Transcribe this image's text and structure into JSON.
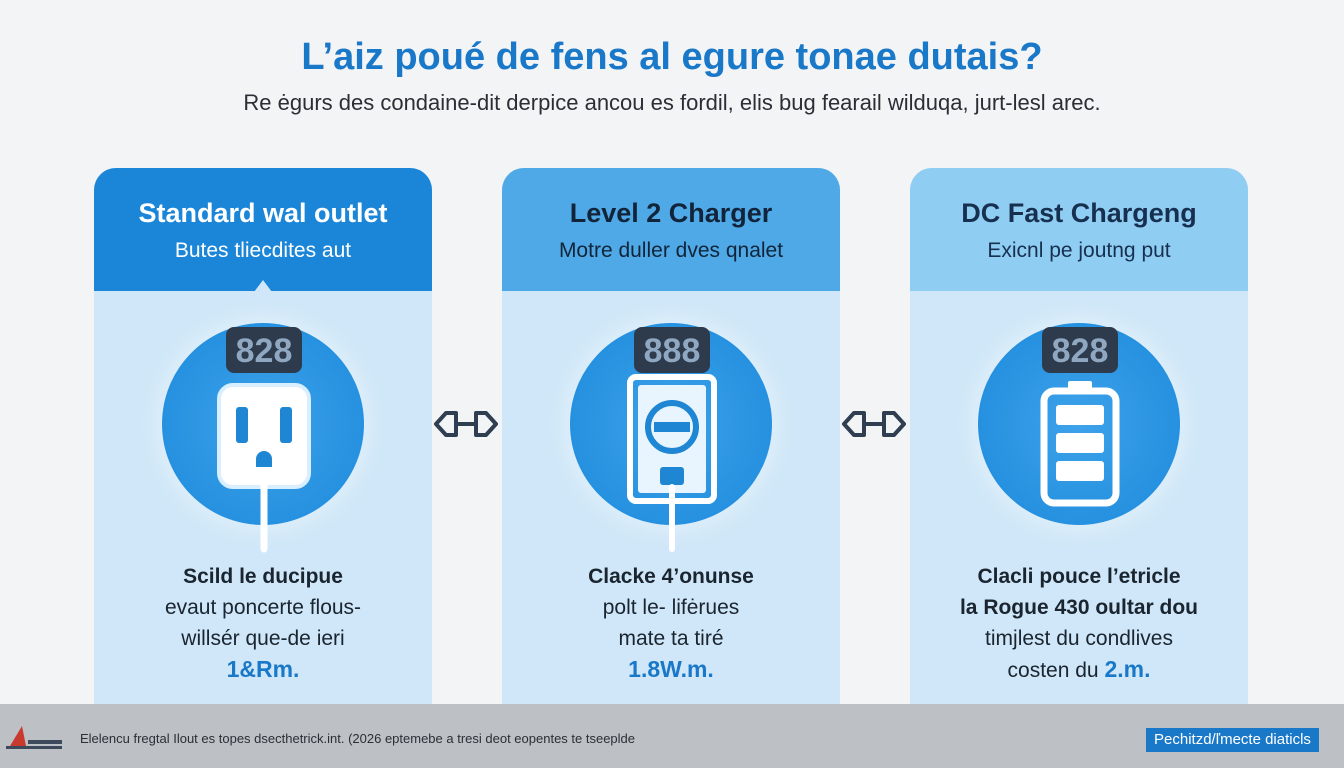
{
  "header": {
    "title": "L’aiz poué de fens al egure tonae dutais?",
    "subtitle": "Re ėgurs des condaine-dit derpice ancou es fordil, elis bug fearail wilduqa, jurt-lesl arec."
  },
  "cards": [
    {
      "title": "Standard wal outlet",
      "subtitle": "Butes tliecdites aut",
      "badge": "828",
      "icon": "wall-outlet-icon",
      "line1": "Scild le ducipue",
      "line2": "evaut poncerte flous-",
      "line3": "willsér que-de ieri",
      "accent": "1&Rm."
    },
    {
      "title": "Level 2 Charger",
      "subtitle": "Motre duller dves qnalet",
      "badge": "888",
      "icon": "charger-station-icon",
      "line1": "Clacke 4’onunse",
      "line2": "polt le- lifėrues",
      "line3": "mate ta tiré",
      "accent": "1.8W.m."
    },
    {
      "title": "DC Fast Chargeng",
      "subtitle": "Exicnl pe joutng put",
      "badge": "828",
      "icon": "battery-icon",
      "line1": "Clacli pouce l’etricle",
      "line2": "la Rogue 430 oultar dou",
      "line3": "timjlest du condlives",
      "line4_prefix": "costen du ",
      "accent": "2.m."
    }
  ],
  "footer": {
    "text": "Elelencu fregtal Ilout es topes dsecthetrick.int. (2026 eptemebe a tresi deot eopentes te tseeplde",
    "link": "Pechitzd/ľmecte diaticls"
  },
  "colors": {
    "accent": "#1a78c8",
    "card1_header": "#1b86d8",
    "card2_header": "#4ea9e6",
    "card3_header": "#8fcdf3",
    "card_body": "#cfe7f8"
  }
}
